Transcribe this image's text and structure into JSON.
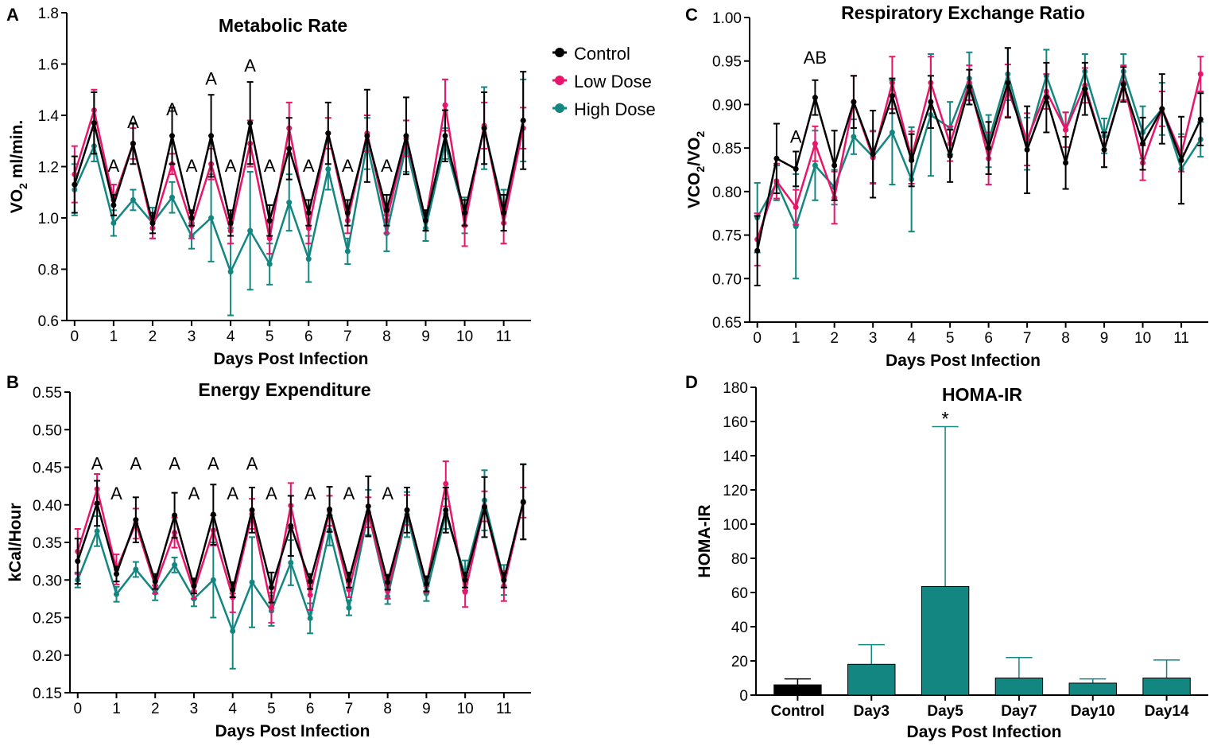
{
  "colors": {
    "control": "#000000",
    "low": "#e8156b",
    "high": "#138682",
    "axis": "#000000"
  },
  "chart_data": [
    {
      "panel": "A",
      "type": "line",
      "title": "Metabolic Rate",
      "xlabel": "Days Post Infection",
      "ylabel_main": "VO",
      "ylabel_sub": "2",
      "ylabel_rest": " ml/min.",
      "xlim": [
        -0.2,
        11.7
      ],
      "ylim": [
        0.6,
        1.8
      ],
      "yticks": [
        "0.6",
        "0.8",
        "1.0",
        "1.2",
        "1.4",
        "1.6",
        "1.8"
      ],
      "xticks": [
        "0",
        "1",
        "2",
        "3",
        "4",
        "5",
        "6",
        "7",
        "8",
        "9",
        "10",
        "11"
      ],
      "x": [
        0,
        0.5,
        1,
        1.5,
        2,
        2.5,
        3,
        3.5,
        4,
        4.5,
        5,
        5.5,
        6,
        6.5,
        7,
        7.5,
        8,
        8.5,
        9,
        9.5,
        10,
        10.5,
        11,
        11.5
      ],
      "series": [
        {
          "name": "Control",
          "key": "control",
          "values": [
            1.13,
            1.37,
            1.05,
            1.29,
            0.98,
            1.32,
            1.0,
            1.32,
            0.98,
            1.37,
            0.99,
            1.27,
            1.02,
            1.33,
            1.02,
            1.32,
            1.03,
            1.32,
            0.99,
            1.32,
            1.02,
            1.35,
            1.02,
            1.38
          ],
          "err": [
            0.11,
            0.12,
            0.04,
            0.08,
            0.04,
            0.11,
            0.03,
            0.16,
            0.05,
            0.16,
            0.06,
            0.12,
            0.05,
            0.12,
            0.05,
            0.18,
            0.06,
            0.15,
            0.04,
            0.1,
            0.05,
            0.14,
            0.07,
            0.19
          ]
        },
        {
          "name": "Low Dose",
          "key": "low",
          "values": [
            1.17,
            1.42,
            1.07,
            1.29,
            0.96,
            1.21,
            0.97,
            1.21,
            0.95,
            1.29,
            0.92,
            1.35,
            0.96,
            1.33,
            0.99,
            1.33,
            0.99,
            1.31,
            0.99,
            1.44,
            0.97,
            1.36,
            0.98,
            1.35
          ],
          "err": [
            0.11,
            0.08,
            0.06,
            0.06,
            0.04,
            0.04,
            0.05,
            0.06,
            0.05,
            0.09,
            0.06,
            0.1,
            0.06,
            0.06,
            0.05,
            0.07,
            0.05,
            0.07,
            0.04,
            0.1,
            0.08,
            0.09,
            0.08,
            0.08
          ]
        },
        {
          "name": "High Dose",
          "key": "high",
          "values": [
            1.11,
            1.28,
            0.98,
            1.07,
            0.98,
            1.08,
            0.93,
            1.0,
            0.79,
            0.95,
            0.82,
            1.06,
            0.84,
            1.19,
            0.87,
            1.29,
            0.94,
            1.28,
            0.96,
            1.29,
            1.01,
            1.35,
            1.03,
            1.38
          ],
          "err": [
            0.1,
            0.06,
            0.05,
            0.04,
            0.06,
            0.06,
            0.05,
            0.17,
            0.17,
            0.23,
            0.08,
            0.11,
            0.09,
            0.08,
            0.05,
            0.1,
            0.07,
            0.1,
            0.05,
            0.06,
            0.07,
            0.16,
            0.08,
            0.16
          ]
        }
      ],
      "annotations": [
        {
          "x": 1.0,
          "y": 1.18,
          "text": "A"
        },
        {
          "x": 1.5,
          "y": 1.35,
          "text": "A"
        },
        {
          "x": 2.5,
          "y": 1.4,
          "text": "A"
        },
        {
          "x": 3.0,
          "y": 1.18,
          "text": "A"
        },
        {
          "x": 3.5,
          "y": 1.52,
          "text": "A"
        },
        {
          "x": 4.0,
          "y": 1.18,
          "text": "A"
        },
        {
          "x": 4.5,
          "y": 1.57,
          "text": "A"
        },
        {
          "x": 5.0,
          "y": 1.18,
          "text": "A"
        },
        {
          "x": 6.0,
          "y": 1.18,
          "text": "A"
        },
        {
          "x": 7.0,
          "y": 1.18,
          "text": "A"
        },
        {
          "x": 8.0,
          "y": 1.18,
          "text": "A"
        }
      ],
      "legend": [
        "Control",
        "Low Dose",
        "High Dose"
      ],
      "legend_placement": "right of panel"
    },
    {
      "panel": "B",
      "type": "line",
      "title": "Energy Expenditure",
      "xlabel": "Days Post Infection",
      "ylabel_main": "kCal/Hour",
      "ylabel_sub": "",
      "ylabel_rest": "",
      "xlim": [
        -0.2,
        11.7
      ],
      "ylim": [
        0.15,
        0.55
      ],
      "yticks": [
        "0.15",
        "0.20",
        "0.25",
        "0.30",
        "0.35",
        "0.40",
        "0.45",
        "0.50",
        "0.55"
      ],
      "xticks": [
        "0",
        "1",
        "2",
        "3",
        "4",
        "5",
        "6",
        "7",
        "8",
        "9",
        "10",
        "11"
      ],
      "x": [
        0,
        0.5,
        1,
        1.5,
        2,
        2.5,
        3,
        3.5,
        4,
        4.5,
        5,
        5.5,
        6,
        6.5,
        7,
        7.5,
        8,
        8.5,
        9,
        9.5,
        10,
        10.5,
        11,
        11.5
      ],
      "series": [
        {
          "name": "Control",
          "key": "control",
          "values": [
            0.325,
            0.402,
            0.308,
            0.38,
            0.298,
            0.386,
            0.292,
            0.387,
            0.287,
            0.393,
            0.29,
            0.372,
            0.298,
            0.394,
            0.3,
            0.398,
            0.297,
            0.393,
            0.295,
            0.393,
            0.3,
            0.397,
            0.3,
            0.404
          ],
          "err": [
            0.03,
            0.03,
            0.01,
            0.03,
            0.01,
            0.03,
            0.01,
            0.04,
            0.01,
            0.03,
            0.02,
            0.04,
            0.01,
            0.03,
            0.01,
            0.04,
            0.01,
            0.03,
            0.01,
            0.03,
            0.01,
            0.04,
            0.01,
            0.05
          ]
        },
        {
          "name": "Low Dose",
          "key": "low",
          "values": [
            0.338,
            0.421,
            0.314,
            0.375,
            0.292,
            0.363,
            0.285,
            0.366,
            0.277,
            0.388,
            0.263,
            0.399,
            0.28,
            0.392,
            0.287,
            0.39,
            0.285,
            0.393,
            0.293,
            0.428,
            0.284,
            0.398,
            0.292,
            0.403
          ],
          "err": [
            0.03,
            0.02,
            0.02,
            0.02,
            0.01,
            0.02,
            0.01,
            0.02,
            0.02,
            0.02,
            0.02,
            0.03,
            0.02,
            0.02,
            0.01,
            0.02,
            0.01,
            0.02,
            0.01,
            0.03,
            0.02,
            0.02,
            0.02,
            0.02
          ]
        },
        {
          "name": "High Dose",
          "key": "high",
          "values": [
            0.3,
            0.365,
            0.281,
            0.314,
            0.283,
            0.32,
            0.275,
            0.3,
            0.232,
            0.297,
            0.259,
            0.323,
            0.249,
            0.366,
            0.263,
            0.39,
            0.278,
            0.387,
            0.282,
            0.388,
            0.306,
            0.406,
            0.3,
            0.404
          ],
          "err": [
            0.01,
            0.02,
            0.01,
            0.01,
            0.01,
            0.01,
            0.01,
            0.05,
            0.05,
            0.06,
            0.02,
            0.03,
            0.02,
            0.02,
            0.01,
            0.03,
            0.01,
            0.03,
            0.01,
            0.02,
            0.02,
            0.04,
            0.02,
            0.05
          ]
        }
      ],
      "annotations": [
        {
          "x": 0.5,
          "y": 0.447,
          "text": "A"
        },
        {
          "x": 1.0,
          "y": 0.407,
          "text": "A"
        },
        {
          "x": 1.5,
          "y": 0.447,
          "text": "A"
        },
        {
          "x": 2.5,
          "y": 0.447,
          "text": "A"
        },
        {
          "x": 3.0,
          "y": 0.407,
          "text": "A"
        },
        {
          "x": 3.5,
          "y": 0.447,
          "text": "A"
        },
        {
          "x": 4.0,
          "y": 0.407,
          "text": "A"
        },
        {
          "x": 4.5,
          "y": 0.447,
          "text": "A"
        },
        {
          "x": 5.0,
          "y": 0.407,
          "text": "A"
        },
        {
          "x": 6.0,
          "y": 0.407,
          "text": "A"
        },
        {
          "x": 7.0,
          "y": 0.407,
          "text": "A"
        },
        {
          "x": 8.0,
          "y": 0.407,
          "text": "A"
        }
      ]
    },
    {
      "panel": "C",
      "type": "line",
      "title": "Respiratory Exchange Ratio",
      "xlabel": "Days Post Infection",
      "ylabel_main": "VCO",
      "ylabel_sub": "2",
      "ylabel_rest": "/VO",
      "ylabel_sub2": "2",
      "xlim": [
        -0.2,
        11.7
      ],
      "ylim": [
        0.65,
        1.0
      ],
      "yticks": [
        "0.65",
        "0.70",
        "0.75",
        "0.80",
        "0.85",
        "0.90",
        "0.95",
        "1.00"
      ],
      "xticks": [
        "0",
        "1",
        "2",
        "3",
        "4",
        "5",
        "6",
        "7",
        "8",
        "9",
        "10",
        "11"
      ],
      "x": [
        0,
        0.5,
        1,
        1.5,
        2,
        2.5,
        3,
        3.5,
        4,
        4.5,
        5,
        5.5,
        6,
        6.5,
        7,
        7.5,
        8,
        8.5,
        9,
        9.5,
        10,
        10.5,
        11,
        11.5
      ],
      "series": [
        {
          "name": "Control",
          "key": "control",
          "values": [
            0.732,
            0.838,
            0.826,
            0.908,
            0.83,
            0.903,
            0.843,
            0.91,
            0.836,
            0.903,
            0.841,
            0.92,
            0.85,
            0.925,
            0.848,
            0.908,
            0.833,
            0.918,
            0.848,
            0.923,
            0.855,
            0.895,
            0.836,
            0.883
          ],
          "err": [
            0.04,
            0.04,
            0.02,
            0.02,
            0.04,
            0.03,
            0.05,
            0.02,
            0.03,
            0.03,
            0.03,
            0.02,
            0.03,
            0.04,
            0.05,
            0.04,
            0.03,
            0.03,
            0.02,
            0.02,
            0.03,
            0.04,
            0.05,
            0.03
          ]
        },
        {
          "name": "Low Dose",
          "key": "low",
          "values": [
            0.745,
            0.812,
            0.782,
            0.855,
            0.793,
            0.903,
            0.839,
            0.925,
            0.839,
            0.925,
            0.855,
            0.925,
            0.838,
            0.916,
            0.86,
            0.915,
            0.871,
            0.922,
            0.848,
            0.925,
            0.833,
            0.895,
            0.843,
            0.935
          ],
          "err": [
            0.03,
            0.02,
            0.02,
            0.02,
            0.03,
            0.03,
            0.03,
            0.03,
            0.03,
            0.03,
            0.02,
            0.02,
            0.03,
            0.03,
            0.03,
            0.02,
            0.02,
            0.02,
            0.02,
            0.02,
            0.02,
            0.02,
            0.02,
            0.02
          ]
        },
        {
          "name": "High Dose",
          "key": "high",
          "values": [
            0.77,
            0.81,
            0.76,
            0.83,
            0.805,
            0.863,
            0.84,
            0.868,
            0.814,
            0.888,
            0.873,
            0.93,
            0.858,
            0.935,
            0.855,
            0.933,
            0.871,
            0.938,
            0.864,
            0.938,
            0.868,
            0.895,
            0.826,
            0.86
          ],
          "err": [
            0.04,
            0.02,
            0.06,
            0.04,
            0.02,
            0.02,
            0.03,
            0.06,
            0.06,
            0.07,
            0.03,
            0.03,
            0.03,
            0.03,
            0.03,
            0.03,
            0.02,
            0.02,
            0.02,
            0.02,
            0.03,
            0.03,
            0.04,
            0.02
          ]
        }
      ],
      "annotations": [
        {
          "x": 1.5,
          "y": 0.947,
          "text": "AB"
        },
        {
          "x": 1.0,
          "y": 0.856,
          "text": "A"
        }
      ]
    },
    {
      "panel": "D",
      "type": "bar",
      "title": "HOMA-IR",
      "xlabel": "Days Post  Infection",
      "ylabel_main": "HOMA-IR",
      "ylabel_sub": "",
      "ylabel_rest": "",
      "ylim": [
        0,
        180
      ],
      "yticks": [
        "0",
        "20",
        "40",
        "60",
        "80",
        "100",
        "120",
        "140",
        "160",
        "180"
      ],
      "categories": [
        "Control",
        "Day3",
        "Day5",
        "Day7",
        "Day10",
        "Day14"
      ],
      "values": [
        6,
        18,
        63.5,
        10,
        7,
        10
      ],
      "err": [
        3.5,
        11.5,
        93.5,
        12,
        2.5,
        10.5
      ],
      "bar_colors": [
        "control",
        "high",
        "high",
        "high",
        "high",
        "high"
      ],
      "annotations": [
        {
          "category": "Day5",
          "text": "*"
        }
      ]
    }
  ],
  "panels": {
    "A": {
      "label": "A"
    },
    "B": {
      "label": "B"
    },
    "C": {
      "label": "C"
    },
    "D": {
      "label": "D"
    }
  },
  "legend": {
    "items": [
      {
        "label": "Control",
        "key": "control"
      },
      {
        "label": "Low Dose",
        "key": "low"
      },
      {
        "label": "High Dose",
        "key": "high"
      }
    ]
  }
}
